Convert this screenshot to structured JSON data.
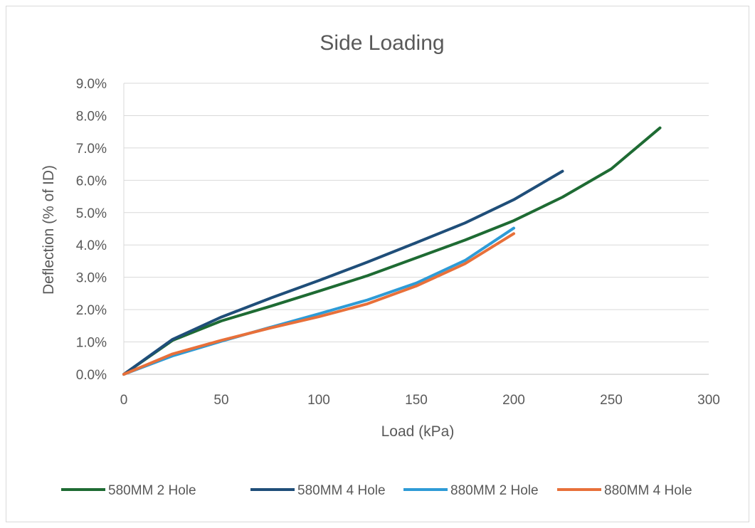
{
  "chart_data": {
    "type": "line",
    "title": "Side Loading",
    "xlabel": "Load (kPa)",
    "ylabel": "Deflection (% of ID)",
    "xlim": [
      0,
      300
    ],
    "ylim": [
      0,
      0.09
    ],
    "x_ticks": [
      "0",
      "50",
      "100",
      "150",
      "200",
      "250",
      "300"
    ],
    "y_ticks": [
      "0.0%",
      "1.0%",
      "2.0%",
      "3.0%",
      "4.0%",
      "5.0%",
      "6.0%",
      "7.0%",
      "8.0%",
      "9.0%"
    ],
    "grid": "horizontal",
    "legend_position": "bottom",
    "series": [
      {
        "name": "580MM 2 Hole",
        "color": "#1e6b33",
        "x": [
          0,
          25,
          50,
          75,
          100,
          125,
          150,
          175,
          200,
          225,
          250,
          275
        ],
        "y": [
          0.0,
          0.0105,
          0.0165,
          0.021,
          0.0257,
          0.0305,
          0.036,
          0.0415,
          0.0475,
          0.0548,
          0.0635,
          0.0762
        ]
      },
      {
        "name": "580MM 4 Hole",
        "color": "#1f4e79",
        "x": [
          0,
          25,
          50,
          75,
          100,
          125,
          150,
          175,
          200,
          225
        ],
        "y": [
          0.0,
          0.0108,
          0.0177,
          0.0235,
          0.029,
          0.0347,
          0.0407,
          0.0468,
          0.054,
          0.0628
        ]
      },
      {
        "name": "880MM 2 Hole",
        "color": "#2e9bd6",
        "x": [
          0,
          25,
          50,
          75,
          100,
          125,
          150,
          175,
          200
        ],
        "y": [
          0.0,
          0.0057,
          0.0102,
          0.0145,
          0.0187,
          0.023,
          0.0282,
          0.0352,
          0.0452
        ]
      },
      {
        "name": "880MM 4 Hole",
        "color": "#e8703a",
        "x": [
          0,
          25,
          50,
          75,
          100,
          125,
          150,
          175,
          200
        ],
        "y": [
          0.0,
          0.0063,
          0.0105,
          0.0143,
          0.0178,
          0.0218,
          0.0273,
          0.0342,
          0.0435
        ]
      }
    ]
  }
}
